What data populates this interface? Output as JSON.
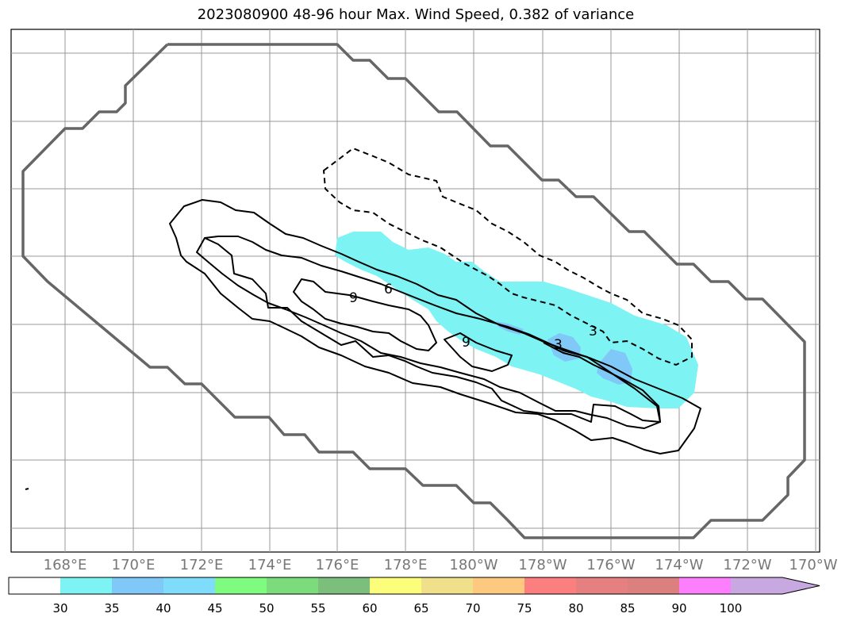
{
  "title": "2023080900 48-96 hour Max. Wind Speed, 0.382 of variance",
  "colors": {
    "outline": "#666666",
    "contour": "#000000",
    "grid": "#999999",
    "fill_30": "#7ef3f3",
    "fill_35": "#80c8f8"
  },
  "lon_labels": [
    "168°E",
    "170°E",
    "172°E",
    "174°E",
    "176°E",
    "178°E",
    "180°W",
    "178°W",
    "176°W",
    "174°W",
    "172°W",
    "170°W"
  ],
  "contour_labels": [
    "9",
    "6",
    "9",
    "3",
    "3"
  ],
  "colorbar": {
    "ticks": [
      "30",
      "35",
      "40",
      "45",
      "50",
      "55",
      "60",
      "65",
      "70",
      "75",
      "80",
      "85",
      "90",
      "100"
    ],
    "colors": [
      "#ffffff",
      "#7ef3f3",
      "#80c8f8",
      "#7fdcfb",
      "#7ffc7f",
      "#7cdc7c",
      "#7cbe7c",
      "#fdfd7c",
      "#f0df8b",
      "#fdc980",
      "#fc7f7f",
      "#e67f7f",
      "#dc7f7f",
      "#fd7ffd",
      "#c8a8e0"
    ]
  }
}
